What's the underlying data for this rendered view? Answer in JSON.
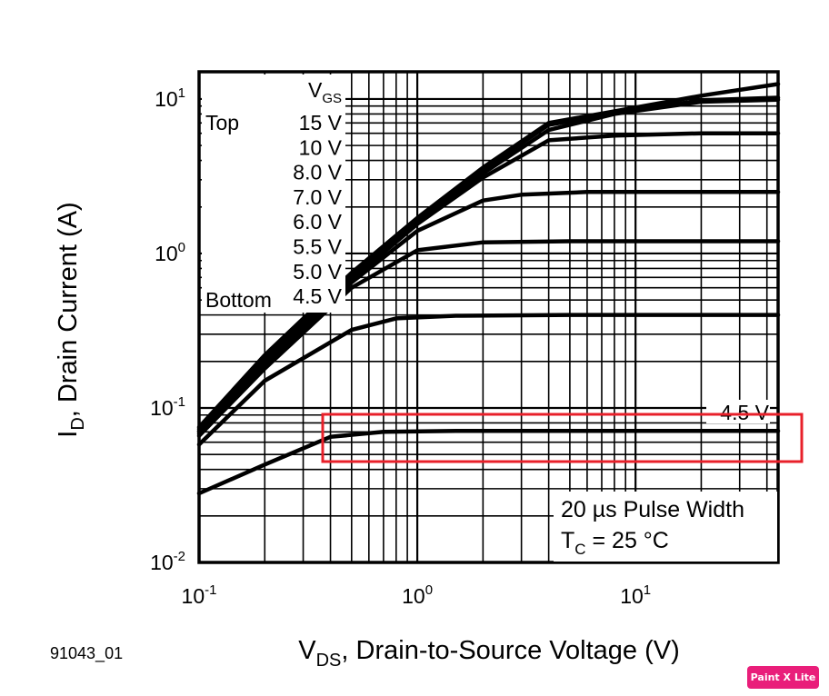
{
  "chart_data": {
    "type": "line",
    "x_scale": "log",
    "y_scale": "log",
    "xlim": [
      0.1,
      45
    ],
    "ylim": [
      0.01,
      15
    ],
    "grid": true,
    "x_ticks": [
      {
        "base": "10",
        "exp": "-1"
      },
      {
        "base": "10",
        "exp": "0"
      },
      {
        "base": "10",
        "exp": "1"
      }
    ],
    "y_ticks": [
      {
        "base": "10",
        "exp": "1"
      },
      {
        "base": "10",
        "exp": "0"
      },
      {
        "base": "10",
        "exp": "-1"
      },
      {
        "base": "10",
        "exp": "-2"
      }
    ],
    "xlabel": {
      "main": "V",
      "sub": "DS",
      "rest": ", Drain-to-Source Voltage (V)"
    },
    "ylabel": {
      "main": "I",
      "sub": "D",
      "rest": ", Drain Current (A)"
    },
    "legend": {
      "title_main": "V",
      "title_sub": "GS",
      "top_label": "Top",
      "bottom_label": "Bottom",
      "entries": [
        "15 V",
        "10 V",
        "8.0 V",
        "7.0 V",
        "6.0 V",
        "5.5 V",
        "5.0 V",
        "4.5 V"
      ]
    },
    "series": [
      {
        "name": "15 V",
        "values": [
          [
            0.1,
            0.075
          ],
          [
            0.2,
            0.22
          ],
          [
            0.5,
            0.75
          ],
          [
            1,
            1.7
          ],
          [
            2,
            3.6
          ],
          [
            4,
            7.0
          ],
          [
            10,
            8.8
          ],
          [
            20,
            10.5
          ],
          [
            45,
            12.5
          ]
        ]
      },
      {
        "name": "10 V",
        "values": [
          [
            0.1,
            0.073
          ],
          [
            0.2,
            0.21
          ],
          [
            0.5,
            0.73
          ],
          [
            1,
            1.65
          ],
          [
            2,
            3.5
          ],
          [
            4,
            6.8
          ],
          [
            10,
            8.5
          ],
          [
            20,
            9.8
          ],
          [
            45,
            10.2
          ]
        ]
      },
      {
        "name": "8.0 V",
        "values": [
          [
            0.1,
            0.071
          ],
          [
            0.2,
            0.2
          ],
          [
            0.5,
            0.7
          ],
          [
            1,
            1.6
          ],
          [
            2,
            3.3
          ],
          [
            4,
            6.3
          ],
          [
            8,
            8.0
          ],
          [
            20,
            9.6
          ],
          [
            45,
            9.9
          ]
        ]
      },
      {
        "name": "7.0 V",
        "values": [
          [
            0.1,
            0.07
          ],
          [
            0.2,
            0.195
          ],
          [
            0.5,
            0.68
          ],
          [
            1,
            1.55
          ],
          [
            2,
            3.1
          ],
          [
            4,
            5.4
          ],
          [
            8,
            5.8
          ],
          [
            20,
            6.0
          ],
          [
            45,
            6.0
          ]
        ]
      },
      {
        "name": "6.0 V",
        "values": [
          [
            0.1,
            0.068
          ],
          [
            0.2,
            0.19
          ],
          [
            0.5,
            0.65
          ],
          [
            1,
            1.4
          ],
          [
            2,
            2.2
          ],
          [
            3,
            2.4
          ],
          [
            6,
            2.5
          ],
          [
            20,
            2.5
          ],
          [
            45,
            2.5
          ]
        ]
      },
      {
        "name": "5.5 V",
        "values": [
          [
            0.1,
            0.066
          ],
          [
            0.2,
            0.18
          ],
          [
            0.5,
            0.6
          ],
          [
            1,
            1.05
          ],
          [
            2,
            1.18
          ],
          [
            5,
            1.2
          ],
          [
            20,
            1.2
          ],
          [
            45,
            1.2
          ]
        ]
      },
      {
        "name": "5.0 V",
        "values": [
          [
            0.1,
            0.058
          ],
          [
            0.2,
            0.15
          ],
          [
            0.5,
            0.32
          ],
          [
            0.8,
            0.38
          ],
          [
            1.5,
            0.395
          ],
          [
            5,
            0.4
          ],
          [
            45,
            0.4
          ]
        ]
      },
      {
        "name": "4.5 V",
        "values": [
          [
            0.1,
            0.028
          ],
          [
            0.2,
            0.043
          ],
          [
            0.4,
            0.065
          ],
          [
            0.7,
            0.07
          ],
          [
            1.5,
            0.071
          ],
          [
            5,
            0.071
          ],
          [
            45,
            0.071
          ]
        ]
      }
    ],
    "annotations": {
      "curve_label": "4.5 V",
      "pulse": "20 µs Pulse Width",
      "tc_main": "T",
      "tc_sub": "C",
      "tc_rest": " = 25 °C"
    },
    "highlight_color": "#e8202a"
  },
  "figure_id": "91043_01",
  "badge": "Paint X Lite"
}
